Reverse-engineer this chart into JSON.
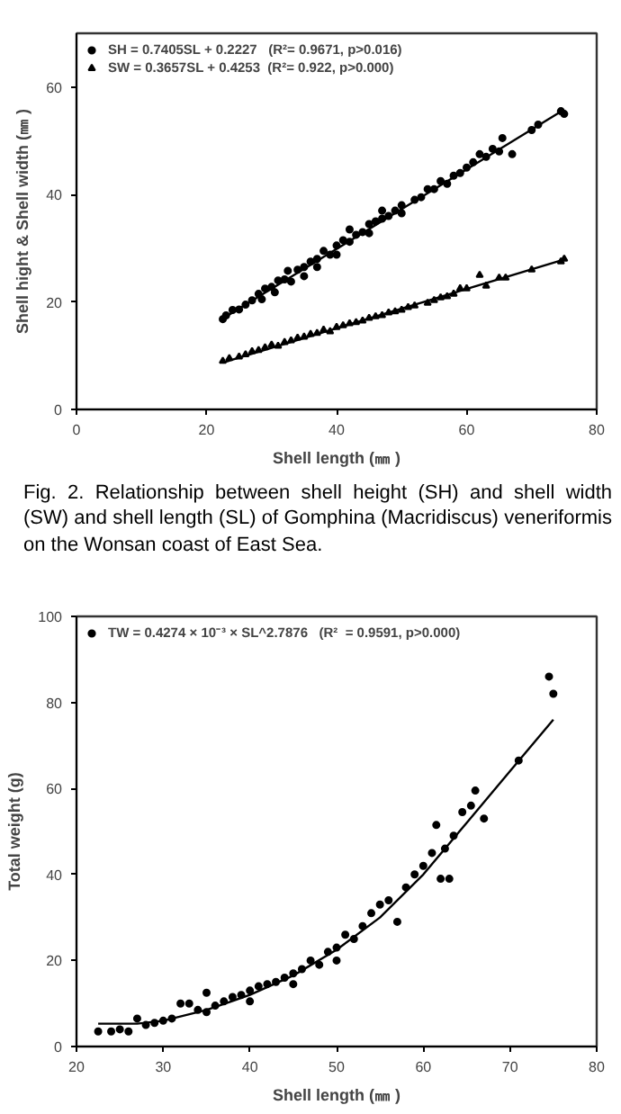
{
  "chart_data": [
    {
      "type": "scatter",
      "xlabel": "Shell length (㎜ )",
      "ylabel": "Shell hight & Shell width (㎜ )",
      "xlim": [
        0,
        80
      ],
      "ylim": [
        0,
        70
      ],
      "xticks": [
        0,
        20,
        40,
        60,
        80
      ],
      "yticks": [
        0,
        20,
        40,
        60
      ],
      "legend": "top left",
      "annotations": [
        "Fig. 2. Relationship between shell height (SH) and shell width (SW) and shell length (SL) of Gomphina (Macridiscus) veneriformis on the Wonsan coast of East Sea."
      ],
      "series": [
        {
          "name": "SH = 0.7405SL + 0.2227   (R²= 0.9671, p>0.016)",
          "marker": "circle",
          "color": "#000000",
          "x": [
            22.5,
            23,
            24,
            25,
            26,
            27,
            28,
            28.5,
            29,
            30,
            30.5,
            31,
            32,
            32.5,
            33,
            34,
            35,
            35,
            36,
            37,
            37,
            38,
            39,
            40,
            40,
            41,
            42,
            42,
            43,
            44,
            45,
            45,
            46,
            47,
            47,
            48,
            49,
            50,
            50,
            52,
            53,
            54,
            55,
            56,
            57,
            58,
            59,
            60,
            61,
            62,
            63,
            64,
            65,
            65.5,
            67,
            70,
            71,
            74.5,
            75
          ],
          "values": [
            16.8,
            17.5,
            18.5,
            18.6,
            19.5,
            20.3,
            21.5,
            20.5,
            22.5,
            22.8,
            21.8,
            24,
            24.2,
            25.8,
            23.8,
            26,
            26.5,
            24.8,
            27.5,
            28,
            26.5,
            29.5,
            28.8,
            30.5,
            28.8,
            31.5,
            31.2,
            33.5,
            32.5,
            33,
            34.5,
            32.8,
            35,
            35.5,
            37,
            36,
            37,
            38,
            36.5,
            39,
            39.5,
            41,
            41,
            42.5,
            42,
            43.5,
            44,
            45,
            46,
            47.5,
            47,
            48.5,
            48,
            50.5,
            47.5,
            52,
            53,
            55.5,
            55
          ]
        },
        {
          "name": "SW = 0.3657SL + 0.4253  (R²= 0.922, p>0.000)",
          "marker": "triangle",
          "color": "#000000",
          "x": [
            22.5,
            23.5,
            25,
            26,
            27,
            28,
            29,
            30,
            31,
            32,
            33,
            34,
            35,
            36,
            37,
            38,
            39,
            40,
            41,
            42,
            43,
            44,
            45,
            46,
            47,
            48,
            49,
            50,
            51,
            52,
            54,
            55,
            56,
            57,
            58,
            59,
            60,
            62,
            63,
            65,
            66,
            70,
            74.5,
            75
          ],
          "values": [
            9,
            9.5,
            9.8,
            10.2,
            10.8,
            11,
            11.5,
            12,
            11.8,
            12.5,
            12.8,
            13.3,
            13.5,
            14,
            14.2,
            14.8,
            14.5,
            15.3,
            15.6,
            16,
            16.2,
            16.5,
            17,
            17.3,
            17.5,
            18,
            18.2,
            18.5,
            19,
            19.3,
            19.8,
            20.3,
            20.8,
            21,
            21.5,
            22.5,
            22.5,
            25,
            23,
            24.5,
            24.5,
            26,
            27.5,
            28
          ]
        },
        {
          "type": "line",
          "color": "#000000",
          "x": [
            22.5,
            75
          ],
          "values": [
            16.9,
            55.8
          ]
        },
        {
          "type": "line",
          "color": "#000000",
          "x": [
            22.5,
            75
          ],
          "values": [
            8.7,
            27.9
          ]
        }
      ]
    },
    {
      "type": "scatter",
      "xlabel": "Shell length (㎜ )",
      "ylabel": "Total weight (g)",
      "xlim": [
        20,
        80
      ],
      "ylim": [
        0,
        100
      ],
      "xticks": [
        20,
        30,
        40,
        50,
        60,
        70,
        80
      ],
      "yticks": [
        0,
        20,
        40,
        60,
        80,
        100
      ],
      "legend": "top left",
      "series": [
        {
          "name": "TW = 0.4274 × 10⁻³ × SL^2.7876   (R²  = 0.9591, p>0.000)",
          "marker": "circle",
          "color": "#000000",
          "x": [
            22.5,
            24,
            25,
            26,
            27,
            28,
            29,
            30,
            31,
            32,
            33,
            34,
            35,
            35,
            36,
            37,
            38,
            39,
            40,
            40,
            41,
            42,
            43,
            44,
            45,
            45,
            46,
            47,
            48,
            49,
            50,
            50,
            51,
            52,
            53,
            54,
            55,
            56,
            57,
            58,
            59,
            60,
            61,
            61.5,
            62,
            62.5,
            63,
            63.5,
            64.5,
            65.5,
            66,
            67,
            71,
            74.5,
            75
          ],
          "values": [
            3.5,
            3.5,
            4,
            3.5,
            6.5,
            5,
            5.5,
            6,
            6.5,
            10,
            10,
            8.5,
            12.5,
            8,
            9.5,
            10.5,
            11.5,
            12,
            13,
            10.5,
            14,
            14.5,
            15,
            16,
            17,
            14.5,
            18,
            20,
            19,
            22,
            23,
            20,
            26,
            25,
            28,
            31,
            33,
            34,
            29,
            37,
            40,
            42,
            45,
            51.5,
            39,
            46,
            39,
            49,
            54.5,
            56,
            59.5,
            53,
            66.5,
            86,
            82
          ]
        },
        {
          "type": "line",
          "color": "#000000",
          "x": [
            22.5,
            27,
            30,
            35,
            40,
            45,
            50,
            55,
            60,
            65,
            70,
            75
          ],
          "values": [
            5.3,
            5.3,
            6,
            8.5,
            12,
            16.5,
            22.5,
            30,
            40,
            52,
            64,
            76
          ]
        }
      ]
    }
  ]
}
